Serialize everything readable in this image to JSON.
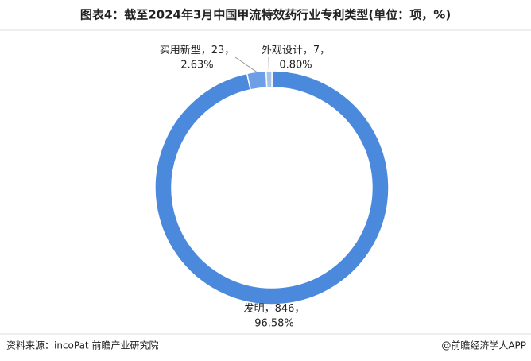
{
  "title": "图表4：截至2024年3月中国甲流特效药行业专利类型(单位：项，%)",
  "chart_data": {
    "type": "donut",
    "categories": [
      "发明",
      "实用新型",
      "外观设计"
    ],
    "values": [
      846,
      23,
      7
    ],
    "value_labels": [
      "，846，",
      "，23，",
      "，7，"
    ],
    "percentages": [
      96.58,
      2.63,
      0.8
    ],
    "percentage_labels": [
      "96.58%",
      "2.63%",
      "0.80%"
    ],
    "colors": [
      "#4a89dc",
      "#6d9fe6",
      "#a8c3ea"
    ]
  },
  "source": "资料来源：incoPat 前瞻产业研究院",
  "credit": "@前瞻经济学人APP"
}
